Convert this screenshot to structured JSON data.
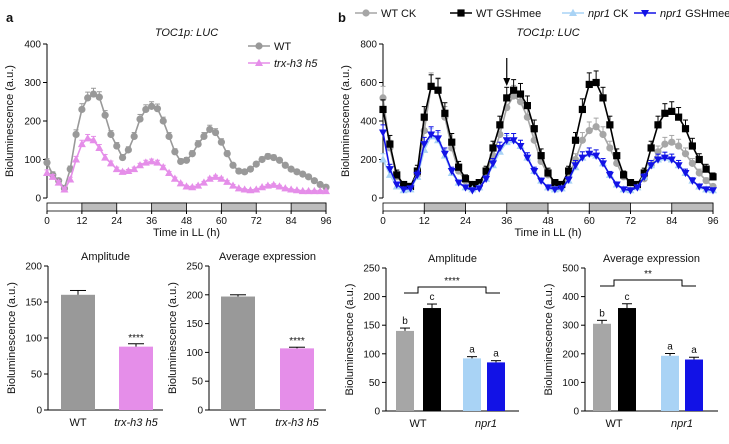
{
  "panels": {
    "a": "a",
    "b": "b"
  },
  "chart_data": [
    {
      "id": "a_line",
      "type": "line",
      "title": "TOC1p: LUC",
      "xlabel": "Time in LL (h)",
      "ylabel": "Bioluminescence (a.u.)",
      "xlim": [
        0,
        96
      ],
      "ylim": [
        0,
        400
      ],
      "xticks": [
        "0",
        "12",
        "24",
        "36",
        "48",
        "60",
        "72",
        "84",
        "96"
      ],
      "yticks": [
        "0",
        "100",
        "200",
        "300",
        "400"
      ],
      "x": [
        0,
        2,
        4,
        6,
        8,
        10,
        12,
        14,
        16,
        18,
        20,
        22,
        24,
        26,
        28,
        30,
        32,
        34,
        36,
        38,
        40,
        42,
        44,
        46,
        48,
        50,
        52,
        54,
        56,
        58,
        60,
        62,
        64,
        66,
        68,
        70,
        72,
        74,
        76,
        78,
        80,
        82,
        84,
        86,
        88,
        90,
        92,
        94,
        96
      ],
      "series": [
        {
          "name": "WT",
          "color": "#999999",
          "marker": "circle",
          "values": [
            92,
            60,
            45,
            25,
            75,
            165,
            230,
            260,
            270,
            262,
            215,
            165,
            135,
            105,
            125,
            160,
            205,
            230,
            238,
            232,
            200,
            160,
            120,
            95,
            98,
            115,
            140,
            160,
            178,
            170,
            145,
            115,
            85,
            70,
            68,
            75,
            88,
            100,
            108,
            105,
            98,
            85,
            75,
            68,
            62,
            55,
            45,
            35,
            28
          ],
          "errors": [
            10,
            8,
            6,
            4,
            8,
            12,
            15,
            15,
            15,
            14,
            12,
            10,
            9,
            8,
            8,
            10,
            12,
            12,
            12,
            12,
            10,
            10,
            8,
            7,
            7,
            8,
            9,
            10,
            11,
            10,
            9,
            8,
            6,
            5,
            5,
            5,
            6,
            7,
            7,
            7,
            6,
            6,
            5,
            5,
            5,
            4,
            4,
            3,
            3
          ]
        },
        {
          "name": "trx-h3 h5",
          "color": "#e58ee9",
          "marker": "triangle",
          "values": [
            65,
            55,
            40,
            22,
            48,
            100,
            140,
            155,
            150,
            130,
            105,
            90,
            75,
            68,
            70,
            75,
            85,
            92,
            95,
            92,
            80,
            65,
            50,
            38,
            30,
            28,
            32,
            40,
            50,
            55,
            50,
            42,
            32,
            25,
            22,
            20,
            22,
            28,
            32,
            34,
            30,
            25,
            22,
            20,
            18,
            18,
            18,
            18,
            18
          ],
          "errors": [
            8,
            6,
            5,
            3,
            6,
            8,
            10,
            10,
            10,
            9,
            8,
            6,
            5,
            4,
            4,
            5,
            5,
            6,
            6,
            6,
            5,
            4,
            4,
            3,
            3,
            3,
            3,
            3,
            4,
            4,
            4,
            3,
            3,
            2,
            2,
            2,
            2,
            2,
            3,
            3,
            3,
            2,
            2,
            2,
            2,
            2,
            2,
            2,
            2
          ]
        }
      ]
    },
    {
      "id": "b_line",
      "type": "line",
      "title": "TOC1p: LUC",
      "xlabel": "Time in LL (h)",
      "ylabel": "Bioluminescence (a.u.)",
      "xlim": [
        0,
        96
      ],
      "ylim": [
        0,
        800
      ],
      "xticks": [
        "0",
        "12",
        "24",
        "36",
        "48",
        "60",
        "72",
        "84",
        "96"
      ],
      "yticks": [
        "0",
        "200",
        "400",
        "600",
        "800"
      ],
      "x": [
        0,
        2,
        4,
        6,
        8,
        10,
        12,
        14,
        16,
        18,
        20,
        22,
        24,
        26,
        28,
        30,
        32,
        34,
        36,
        38,
        40,
        42,
        44,
        46,
        48,
        50,
        52,
        54,
        56,
        58,
        60,
        62,
        64,
        66,
        68,
        70,
        72,
        74,
        76,
        78,
        80,
        82,
        84,
        86,
        88,
        90,
        92,
        94,
        96
      ],
      "series": [
        {
          "name": "WT CK",
          "color": "#a6a6a6",
          "marker": "circle",
          "values": [
            520,
            260,
            110,
            70,
            60,
            120,
            350,
            580,
            560,
            420,
            260,
            140,
            90,
            70,
            80,
            130,
            220,
            330,
            470,
            530,
            500,
            420,
            300,
            190,
            120,
            80,
            70,
            110,
            200,
            300,
            350,
            370,
            330,
            260,
            180,
            110,
            80,
            70,
            100,
            170,
            240,
            280,
            290,
            270,
            230,
            180,
            130,
            90,
            60
          ],
          "errors": [
            60,
            40,
            20,
            15,
            15,
            25,
            50,
            70,
            65,
            55,
            40,
            25,
            18,
            15,
            15,
            20,
            30,
            40,
            50,
            55,
            55,
            50,
            40,
            30,
            20,
            15,
            15,
            20,
            30,
            40,
            45,
            45,
            40,
            35,
            25,
            18,
            15,
            15,
            18,
            25,
            30,
            35,
            35,
            35,
            30,
            25,
            20,
            15,
            12
          ]
        },
        {
          "name": "WT GSHmee",
          "color": "#000000",
          "marker": "square",
          "values": [
            460,
            280,
            120,
            70,
            60,
            140,
            420,
            580,
            560,
            440,
            290,
            160,
            100,
            70,
            80,
            140,
            260,
            380,
            520,
            560,
            540,
            480,
            360,
            220,
            130,
            80,
            70,
            140,
            300,
            460,
            590,
            600,
            520,
            380,
            220,
            120,
            80,
            70,
            130,
            260,
            380,
            440,
            450,
            420,
            360,
            270,
            200,
            150,
            110
          ],
          "errors": [
            50,
            45,
            25,
            15,
            15,
            30,
            55,
            60,
            60,
            55,
            45,
            30,
            20,
            15,
            15,
            25,
            35,
            45,
            55,
            55,
            55,
            50,
            45,
            35,
            25,
            15,
            15,
            25,
            40,
            55,
            60,
            60,
            55,
            45,
            35,
            20,
            15,
            15,
            25,
            35,
            45,
            50,
            50,
            50,
            45,
            40,
            30,
            25,
            20
          ]
        },
        {
          "name": "npr1 CK",
          "color": "#a9d3f5",
          "marker": "triangle",
          "values": [
            200,
            120,
            60,
            40,
            45,
            110,
            250,
            320,
            300,
            220,
            130,
            80,
            55,
            45,
            55,
            100,
            170,
            240,
            290,
            300,
            270,
            210,
            140,
            90,
            55,
            45,
            50,
            90,
            160,
            210,
            230,
            220,
            180,
            120,
            70,
            45,
            40,
            55,
            110,
            170,
            200,
            210,
            200,
            170,
            130,
            90,
            60,
            45,
            40
          ],
          "errors": [
            30,
            20,
            12,
            8,
            8,
            20,
            35,
            40,
            40,
            30,
            20,
            12,
            10,
            8,
            10,
            15,
            25,
            30,
            35,
            35,
            30,
            25,
            20,
            12,
            10,
            8,
            8,
            15,
            25,
            30,
            30,
            30,
            25,
            18,
            12,
            8,
            8,
            10,
            15,
            25,
            28,
            28,
            28,
            25,
            20,
            15,
            10,
            8,
            8
          ]
        },
        {
          "name": "npr1 GSHmee",
          "color": "#1212e6",
          "marker": "triangle-down",
          "values": [
            340,
            150,
            70,
            45,
            50,
            120,
            280,
            330,
            310,
            230,
            140,
            80,
            55,
            40,
            50,
            100,
            180,
            260,
            300,
            300,
            270,
            210,
            140,
            90,
            55,
            45,
            50,
            95,
            170,
            210,
            230,
            220,
            180,
            120,
            70,
            45,
            40,
            55,
            110,
            170,
            200,
            210,
            200,
            170,
            130,
            90,
            60,
            45,
            40
          ],
          "errors": [
            40,
            25,
            12,
            8,
            8,
            20,
            35,
            40,
            40,
            30,
            20,
            12,
            10,
            8,
            10,
            15,
            25,
            30,
            35,
            35,
            30,
            25,
            20,
            12,
            10,
            8,
            8,
            15,
            25,
            30,
            30,
            30,
            25,
            18,
            12,
            8,
            8,
            10,
            15,
            25,
            28,
            28,
            28,
            25,
            20,
            15,
            10,
            8,
            8
          ]
        }
      ]
    },
    {
      "id": "a_amp",
      "type": "bar",
      "title": "Amplitude",
      "ylabel": "Bioluminescence (a.u.)",
      "ylim": [
        0,
        200
      ],
      "yticks": [
        "0",
        "50",
        "100",
        "150",
        "200"
      ],
      "categories": [
        "WT",
        "trx-h3 h5"
      ],
      "values": [
        160,
        88
      ],
      "errors": [
        6,
        4
      ],
      "colors": [
        "#999999",
        "#e58ee9"
      ],
      "labels": [
        "",
        "****"
      ]
    },
    {
      "id": "a_avg",
      "type": "bar",
      "title": "Average expression",
      "ylabel": "Bioluminescence (a.u.)",
      "ylim": [
        0,
        250
      ],
      "yticks": [
        "0",
        "50",
        "100",
        "150",
        "200",
        "250"
      ],
      "categories": [
        "WT",
        "trx-h3 h5"
      ],
      "values": [
        197,
        107
      ],
      "errors": [
        3,
        2
      ],
      "colors": [
        "#999999",
        "#e58ee9"
      ],
      "labels": [
        "",
        "****"
      ]
    },
    {
      "id": "b_amp",
      "type": "bar",
      "title": "Amplitude",
      "ylabel": "Bioluminescence (a.u.)",
      "ylim": [
        0,
        250
      ],
      "yticks": [
        "0",
        "50",
        "100",
        "150",
        "200",
        "250"
      ],
      "groups": [
        "WT",
        "npr1"
      ],
      "values": [
        140,
        180,
        92,
        85
      ],
      "errors": [
        5,
        7,
        3,
        3
      ],
      "colors": [
        "#a6a6a6",
        "#000000",
        "#a9d3f5",
        "#1212e6"
      ],
      "letters": [
        "b",
        "c",
        "a",
        "a"
      ],
      "sig": "****"
    },
    {
      "id": "b_avg",
      "type": "bar",
      "title": "Average expression",
      "ylabel": "Bioluminescence (a.u.)",
      "ylim": [
        0,
        500
      ],
      "yticks": [
        "0",
        "100",
        "200",
        "300",
        "400",
        "500"
      ],
      "groups": [
        "WT",
        "npr1"
      ],
      "values": [
        305,
        360,
        193,
        180
      ],
      "errors": [
        12,
        15,
        8,
        8
      ],
      "colors": [
        "#a6a6a6",
        "#000000",
        "#a9d3f5",
        "#1212e6"
      ],
      "letters": [
        "b",
        "c",
        "a",
        "a"
      ],
      "sig": "**"
    }
  ]
}
